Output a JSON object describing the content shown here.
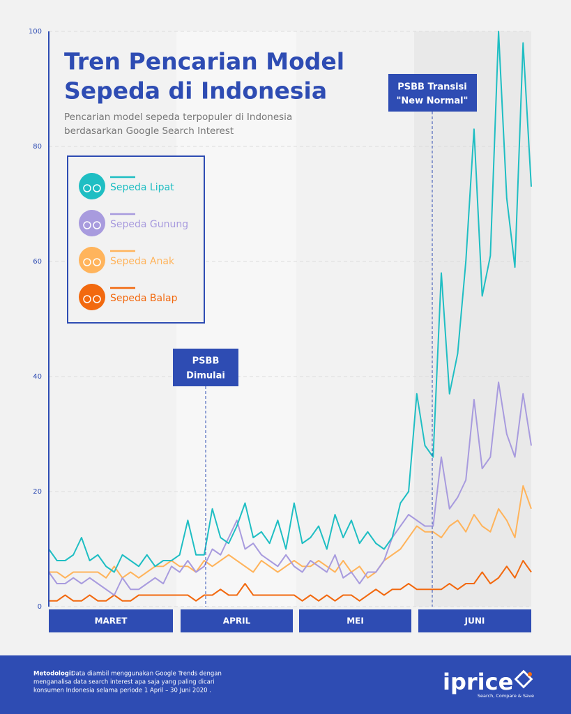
{
  "chart_data": {
    "type": "line",
    "title": [
      "Tren Pencarian Model",
      "Sepeda di Indonesia"
    ],
    "subtitle": [
      "Pencarian model sepeda terpopuler di Indonesia",
      "berdasarkan Google Search Interest"
    ],
    "month_bands": [
      "MARET",
      "APRIL",
      "MEI",
      "JUNI"
    ],
    "ylim": [
      0,
      100
    ],
    "yticks": [
      0,
      20,
      40,
      60,
      80,
      100
    ],
    "grid": true,
    "annotations": [
      {
        "label": [
          "PSBB",
          "Dimulai"
        ]
      },
      {
        "label": [
          "PSBB Transisi",
          "\"New Normal\""
        ]
      }
    ],
    "series": [
      {
        "name": "Sepeda Lipat",
        "color": "#1fbec3",
        "values": [
          10,
          8,
          8,
          9,
          12,
          8,
          9,
          7,
          6,
          9,
          8,
          7,
          9,
          7,
          8,
          8,
          9,
          15,
          9,
          9,
          17,
          12,
          11,
          14,
          18,
          12,
          13,
          11,
          15,
          10,
          18,
          11,
          12,
          14,
          10,
          16,
          12,
          15,
          11,
          13,
          11,
          10,
          12,
          18,
          20,
          37,
          28,
          26,
          58,
          37,
          44,
          60,
          83,
          54,
          61,
          100,
          71,
          59,
          98,
          73
        ]
      },
      {
        "name": "Sepeda Gunung",
        "color": "#a89bde",
        "values": [
          6,
          4,
          4,
          5,
          4,
          5,
          4,
          3,
          2,
          5,
          3,
          3,
          4,
          5,
          4,
          7,
          6,
          8,
          6,
          7,
          10,
          9,
          12,
          15,
          10,
          11,
          9,
          8,
          7,
          9,
          7,
          6,
          8,
          7,
          6,
          9,
          5,
          6,
          4,
          6,
          6,
          8,
          12,
          14,
          16,
          15,
          14,
          14,
          26,
          17,
          19,
          22,
          36,
          24,
          26,
          39,
          30,
          26,
          37,
          28
        ]
      },
      {
        "name": "Sepeda Anak",
        "color": "#ffb45c",
        "values": [
          6,
          6,
          5,
          6,
          6,
          6,
          6,
          5,
          7,
          5,
          6,
          5,
          6,
          7,
          7,
          8,
          7,
          7,
          6,
          8,
          7,
          8,
          9,
          8,
          7,
          6,
          8,
          7,
          6,
          7,
          8,
          7,
          7,
          8,
          7,
          6,
          8,
          6,
          7,
          5,
          6,
          8,
          9,
          10,
          12,
          14,
          13,
          13,
          12,
          14,
          15,
          13,
          16,
          14,
          13,
          17,
          15,
          12,
          21,
          17
        ]
      },
      {
        "name": "Sepeda Balap",
        "color": "#f2690f",
        "values": [
          1,
          1,
          2,
          1,
          1,
          2,
          1,
          1,
          2,
          1,
          1,
          2,
          2,
          2,
          2,
          2,
          2,
          2,
          1,
          2,
          2,
          3,
          2,
          2,
          4,
          2,
          2,
          2,
          2,
          2,
          2,
          1,
          2,
          1,
          2,
          1,
          2,
          2,
          1,
          2,
          3,
          2,
          3,
          3,
          4,
          3,
          3,
          3,
          3,
          4,
          3,
          4,
          4,
          6,
          4,
          5,
          7,
          5,
          8,
          6
        ]
      }
    ]
  },
  "footer": {
    "label": "Metodologi:",
    "lines": [
      "Data diambil menggunakan Google Trends dengan",
      "menganalisa data search interest apa saja yang paling dicari",
      "konsumen Indonesia selama periode 1 April – 30 Juni 2020 ."
    ]
  },
  "logo": {
    "name": "iprice",
    "tagline": "Search, Compare & Save"
  }
}
